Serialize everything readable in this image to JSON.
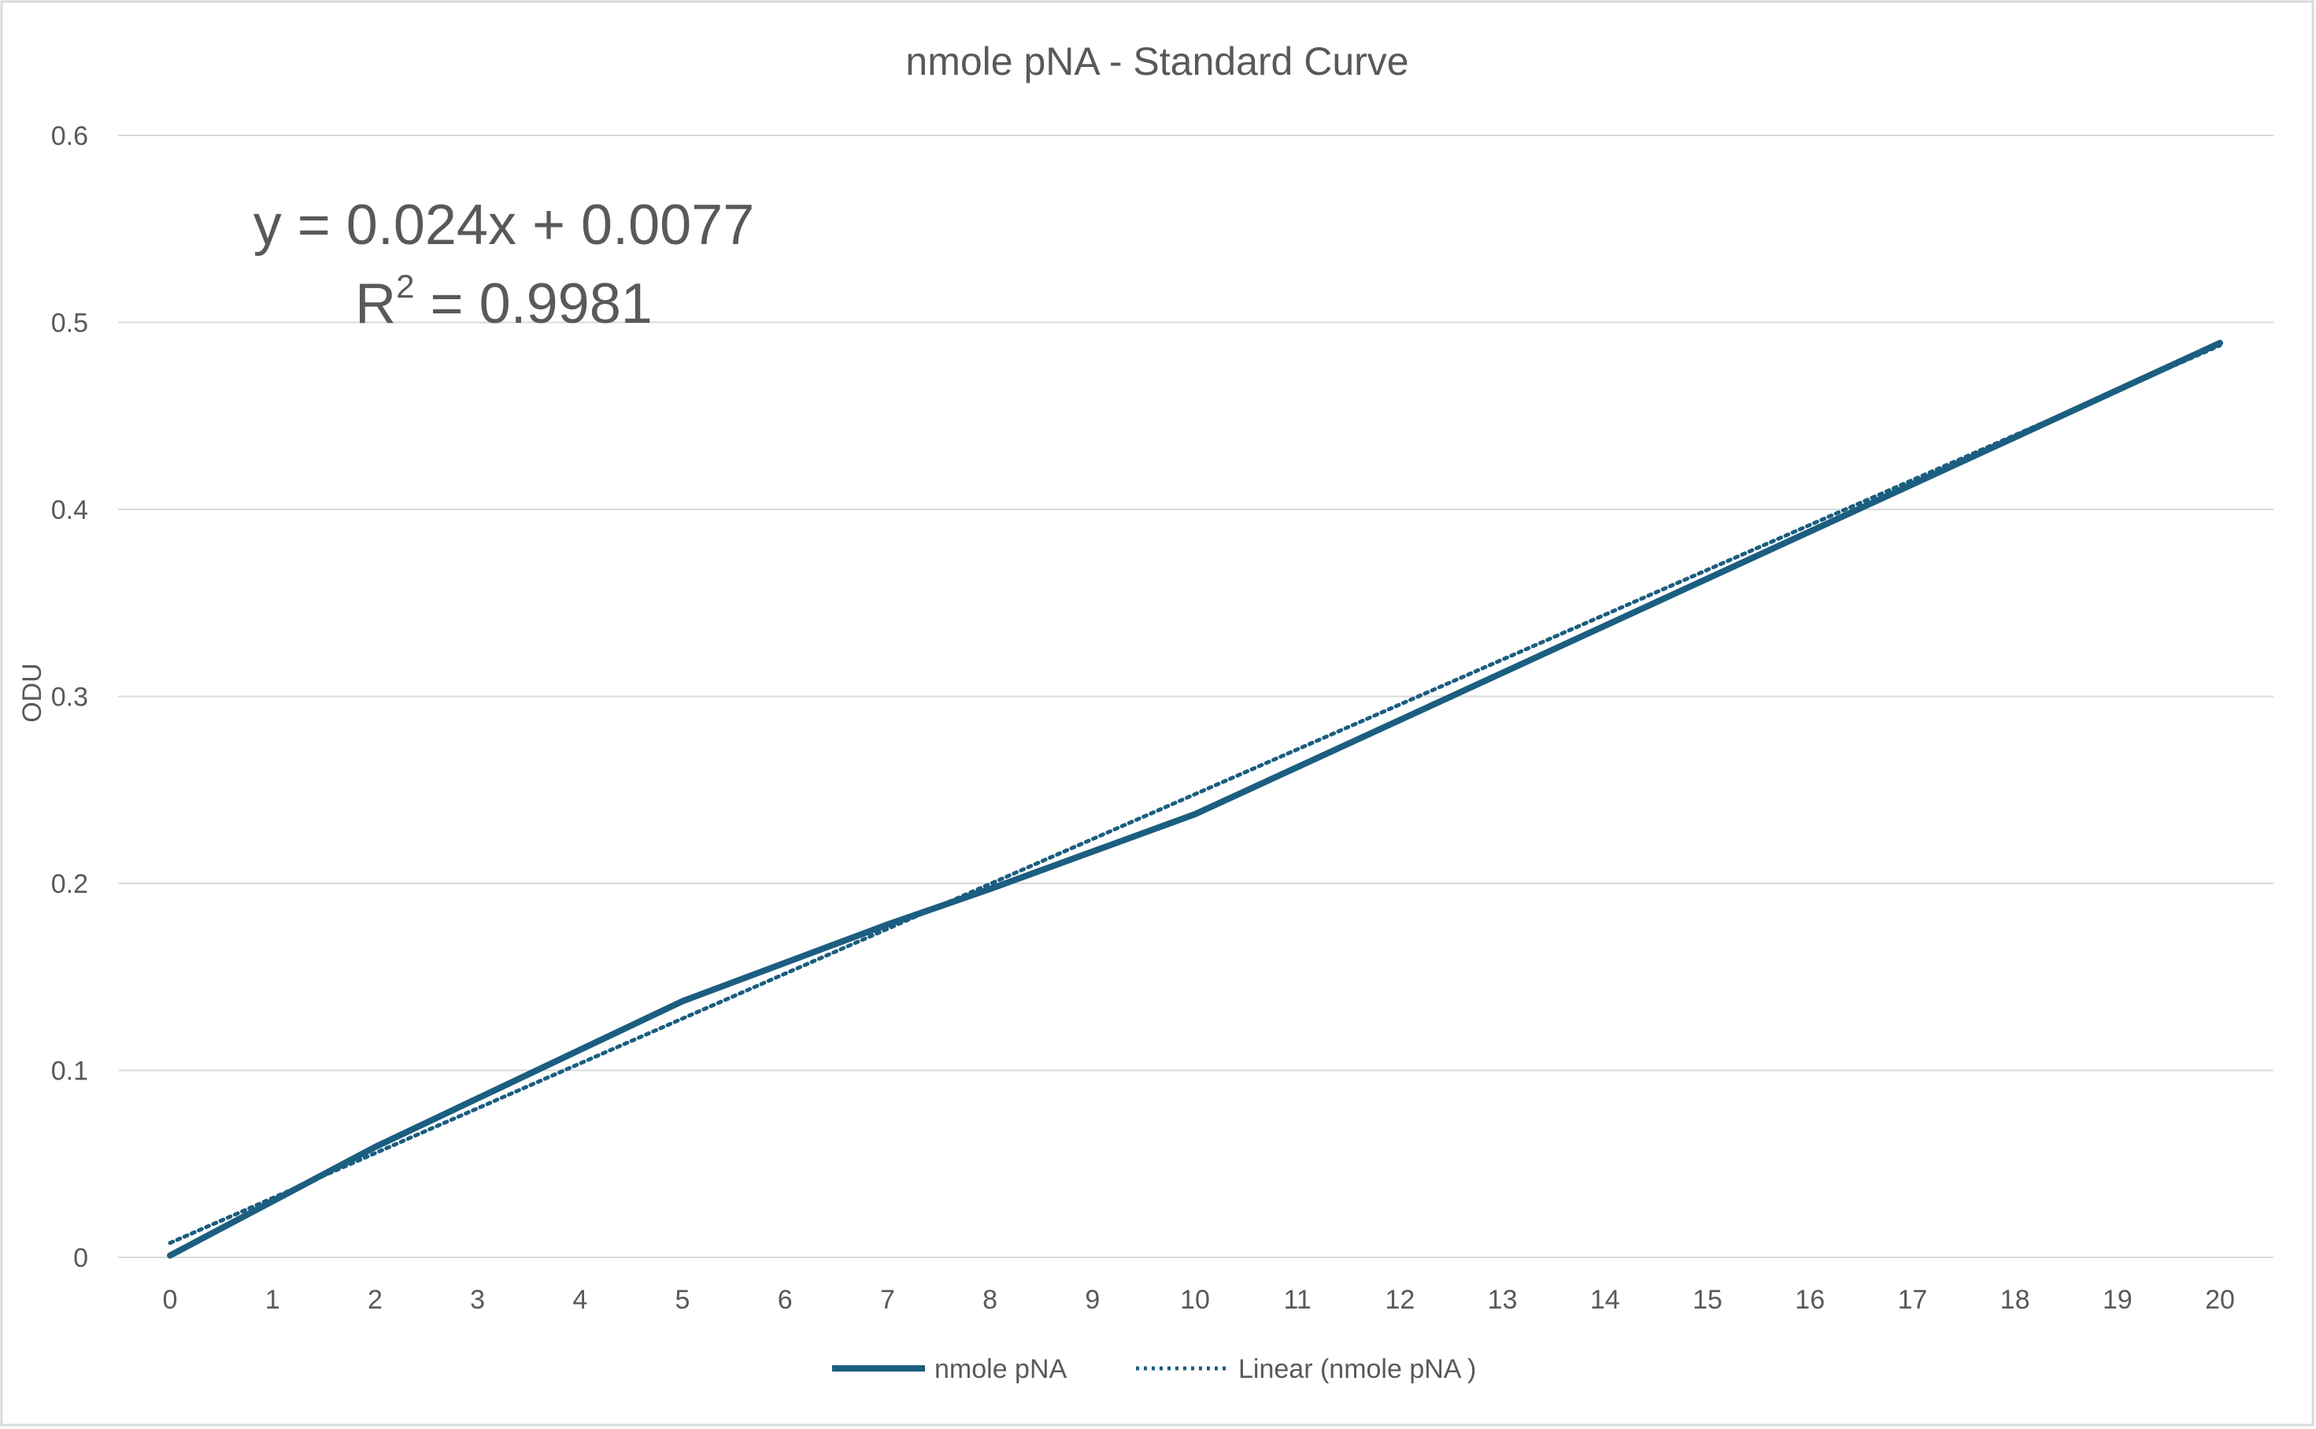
{
  "chart_data": {
    "type": "line",
    "title": "nmole pNA - Standard Curve",
    "xlabel": "",
    "ylabel": "ODU",
    "x": [
      0,
      1,
      2,
      3,
      4,
      5,
      6,
      7,
      8,
      9,
      10,
      11,
      12,
      13,
      14,
      15,
      16,
      17,
      18,
      19,
      20
    ],
    "x_tick_labels": [
      "0",
      "1",
      "2",
      "3",
      "4",
      "5",
      "6",
      "7",
      "8",
      "9",
      "10",
      "11",
      "12",
      "13",
      "14",
      "15",
      "16",
      "17",
      "18",
      "19",
      "20"
    ],
    "y_tick_values": [
      0,
      0.1,
      0.2,
      0.3,
      0.4,
      0.5,
      0.6
    ],
    "y_tick_labels": [
      "0",
      "0.1",
      "0.2",
      "0.3",
      "0.4",
      "0.5",
      "0.6"
    ],
    "ylim": [
      0,
      0.6
    ],
    "grid": true,
    "legend_position": "bottom",
    "series": [
      {
        "name": "nmole pNA",
        "style": "solid",
        "color": "#1b5e80",
        "x": [
          0,
          2,
          5,
          7,
          8,
          10,
          20
        ],
        "values": [
          0.001,
          0.059,
          0.137,
          0.178,
          0.197,
          0.237,
          0.489
        ]
      },
      {
        "name": "Linear (nmole pNA )",
        "style": "dotted",
        "color": "#1b5e80",
        "trendline": {
          "slope": 0.024,
          "intercept": 0.0077,
          "x_range": [
            0,
            20
          ]
        }
      }
    ],
    "annotations": {
      "equation": "y = 0.024x + 0.0077",
      "r2_label": "R",
      "r2_exponent": "2",
      "r2_value": " = 0.9981"
    }
  }
}
